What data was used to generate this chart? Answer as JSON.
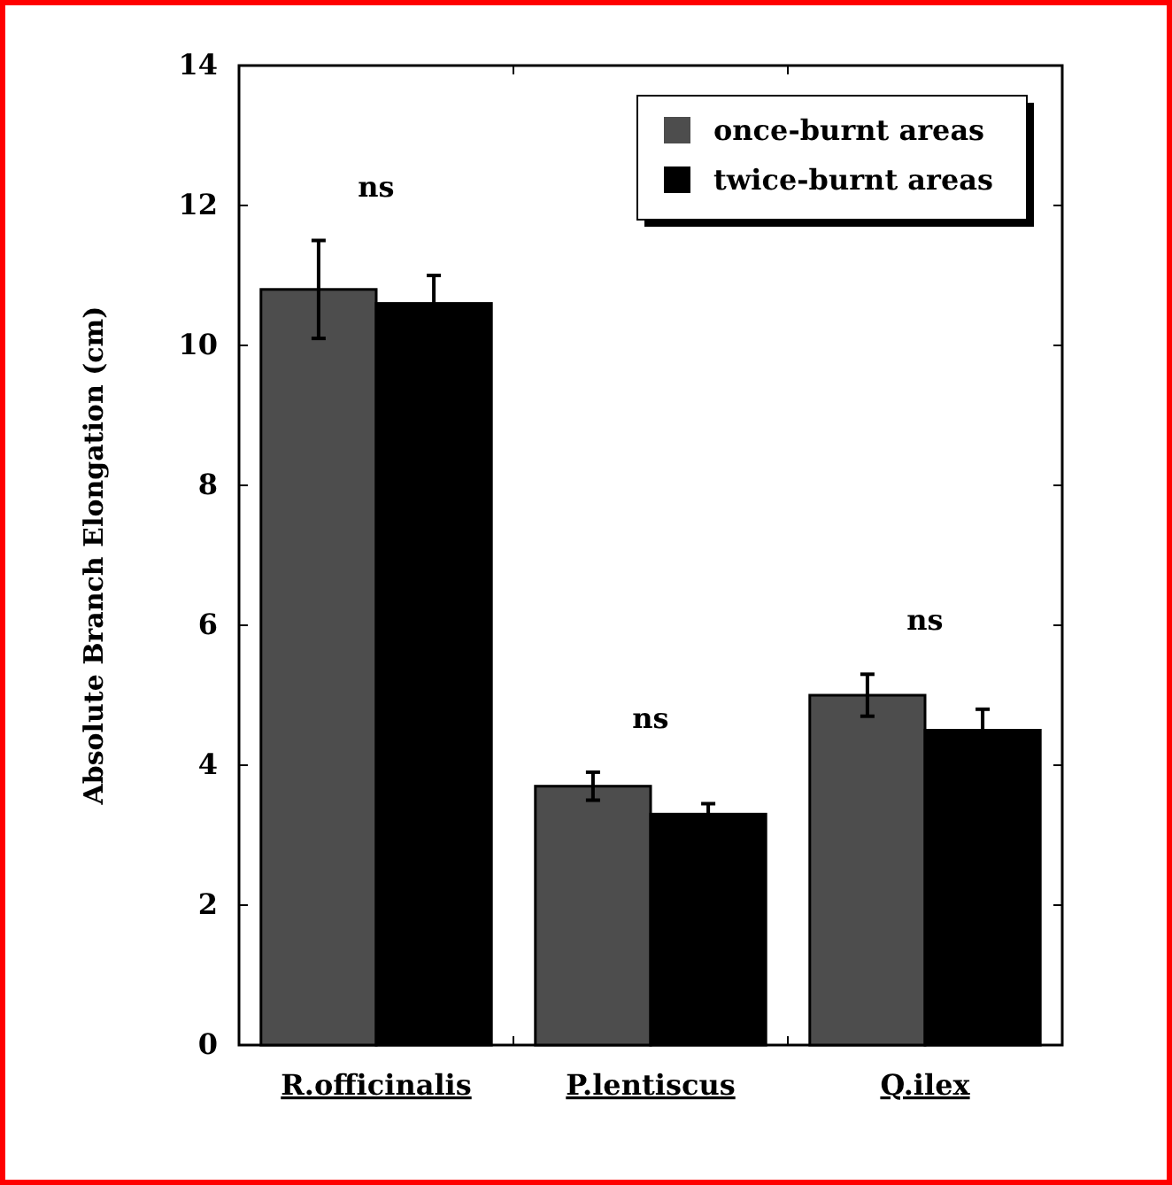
{
  "chart_data": {
    "type": "bar",
    "ylabel": "Absolute Branch Elongation (cm)",
    "categories": [
      "R.officinalis",
      "P.lentiscus",
      "Q.ilex"
    ],
    "series": [
      {
        "name": "once-burnt areas",
        "color": "#4d4d4d",
        "values": [
          10.8,
          3.7,
          5.0
        ],
        "errors": [
          0.7,
          0.2,
          0.3
        ]
      },
      {
        "name": "twice-burnt areas",
        "color": "#000000",
        "values": [
          10.6,
          3.3,
          4.5
        ],
        "errors": [
          0.4,
          0.15,
          0.3
        ]
      }
    ],
    "ylim": [
      0,
      14
    ],
    "yticks": [
      0,
      2,
      4,
      6,
      8,
      10,
      12,
      14
    ],
    "legend": "top right",
    "annotations": [
      "ns",
      "ns",
      "ns"
    ]
  }
}
